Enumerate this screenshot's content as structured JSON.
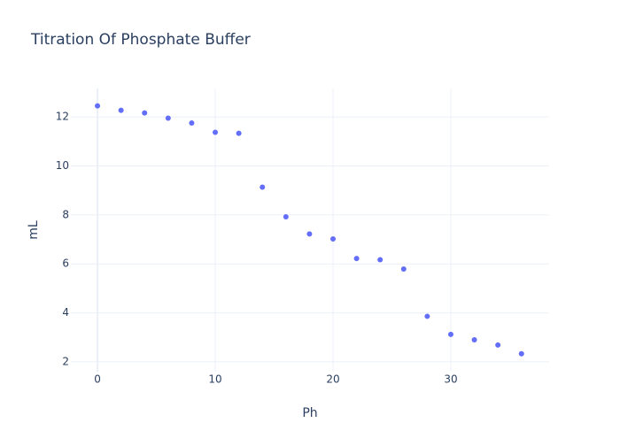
{
  "chart_data": {
    "type": "scatter",
    "title": "Titration Of Phosphate Buffer",
    "x_label": "Ph",
    "y_label": "mL",
    "x": [
      0,
      2,
      4,
      6,
      8,
      10,
      12,
      14,
      16,
      18,
      20,
      22,
      24,
      26,
      28,
      30,
      32,
      34,
      36
    ],
    "values": [
      12.45,
      12.27,
      12.16,
      11.95,
      11.75,
      11.37,
      11.33,
      9.13,
      7.92,
      7.22,
      7.02,
      6.22,
      6.17,
      5.79,
      3.86,
      3.12,
      2.9,
      2.69,
      2.33
    ],
    "color": "#636efa",
    "xlim": [
      -2.26,
      38.35
    ],
    "ylim": [
      1.6,
      13.16
    ],
    "xticks": [
      0,
      10,
      20,
      30
    ],
    "yticks": [
      2,
      4,
      6,
      8,
      10,
      12
    ],
    "grid": true
  }
}
